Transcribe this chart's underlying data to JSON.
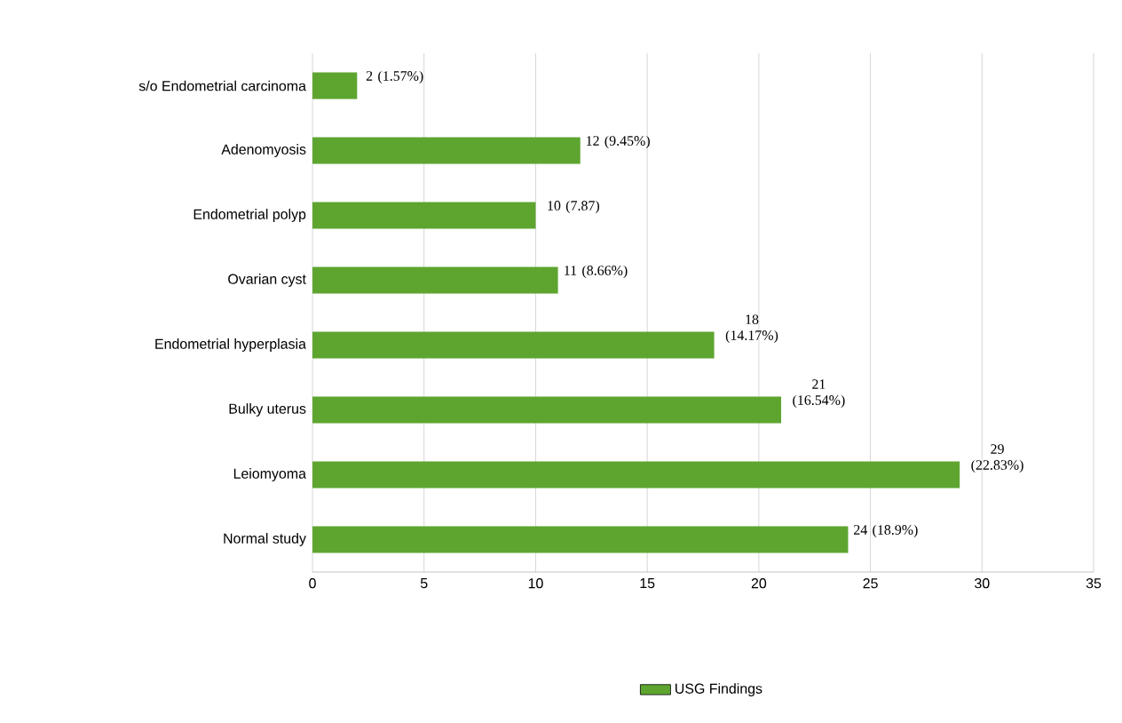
{
  "chart_data": {
    "type": "bar",
    "orientation": "horizontal",
    "categories": [
      "s/o  Endometrial carcinoma",
      "Adenomyosis",
      "Endometrial polyp",
      "Ovarian cyst",
      "Endometrial hyperplasia",
      "Bulky uterus",
      "Leiomyoma",
      "Normal study"
    ],
    "series": [
      {
        "name": "USG Findings",
        "color": "#5ea530",
        "values": [
          2,
          12,
          10,
          11,
          18,
          21,
          29,
          24
        ],
        "value_labels": [
          "2 (1.57%)",
          "12 (9.45%)",
          "10 (7.87)",
          "11 (8.66%)",
          "18 (14.17%)",
          "21 (16.54%)",
          "29 (22.83%)",
          "24 (18.9%)"
        ]
      }
    ],
    "xlim": [
      0,
      35
    ],
    "xticks": [
      0,
      5,
      10,
      15,
      20,
      25,
      30,
      35
    ],
    "grid": "x",
    "legend": "bottom"
  }
}
